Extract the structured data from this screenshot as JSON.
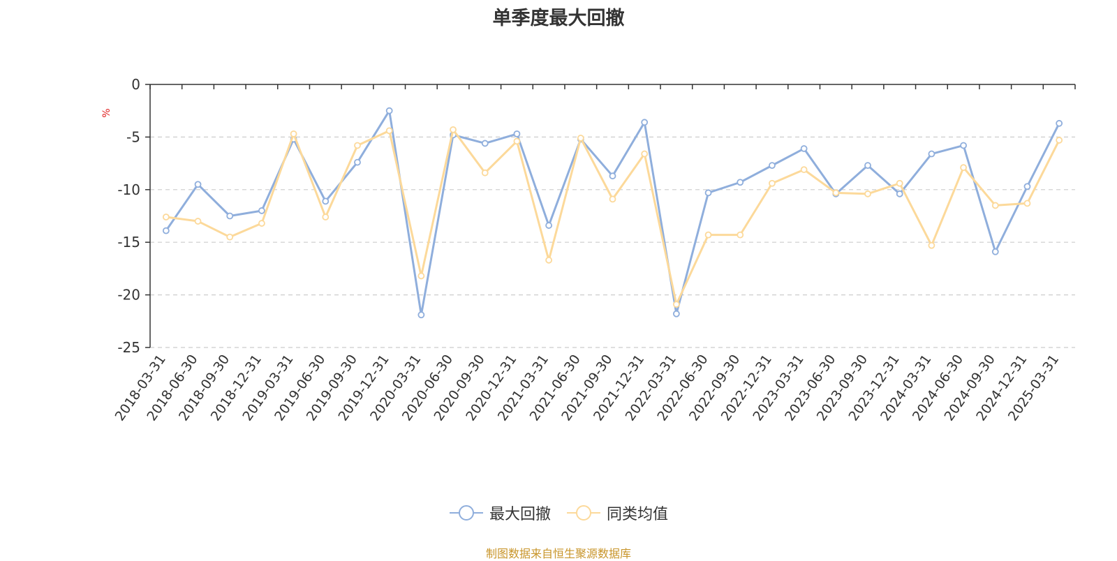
{
  "chart_data": {
    "type": "line",
    "title": "单季度最大回撤",
    "ylabel": "%",
    "xlabel": "",
    "ylim": [
      -25,
      0
    ],
    "yticks": [
      0,
      -5,
      -10,
      -15,
      -20,
      -25
    ],
    "grid": true,
    "legend_position": "bottom-center",
    "categories": [
      "2018-03-31",
      "2018-06-30",
      "2018-09-30",
      "2018-12-31",
      "2019-03-31",
      "2019-06-30",
      "2019-09-30",
      "2019-12-31",
      "2020-03-31",
      "2020-06-30",
      "2020-09-30",
      "2020-12-31",
      "2021-03-31",
      "2021-06-30",
      "2021-09-30",
      "2021-12-31",
      "2022-03-31",
      "2022-06-30",
      "2022-09-30",
      "2022-12-31",
      "2023-03-31",
      "2023-06-30",
      "2023-09-30",
      "2023-12-31",
      "2024-03-31",
      "2024-06-30",
      "2024-09-30",
      "2024-12-31",
      "2025-03-31"
    ],
    "series": [
      {
        "name": "最大回撤",
        "color": "#8faedc",
        "values": [
          -13.9,
          -9.5,
          -12.5,
          -12.0,
          -5.2,
          -11.1,
          -7.4,
          -2.5,
          -21.9,
          -4.8,
          -5.6,
          -4.7,
          -13.4,
          -5.2,
          -8.7,
          -3.6,
          -21.8,
          -10.3,
          -9.3,
          -7.7,
          -6.1,
          -10.4,
          -7.7,
          -10.4,
          -6.6,
          -5.8,
          -15.9,
          -9.7,
          -3.7
        ]
      },
      {
        "name": "同类均值",
        "color": "#fcd99a",
        "values": [
          -12.6,
          -13.0,
          -14.5,
          -13.2,
          -4.7,
          -12.6,
          -5.8,
          -4.4,
          -18.2,
          -4.3,
          -8.4,
          -5.4,
          -16.7,
          -5.1,
          -10.9,
          -6.6,
          -20.9,
          -14.3,
          -14.3,
          -9.4,
          -8.1,
          -10.3,
          -10.4,
          -9.4,
          -15.3,
          -7.9,
          -11.5,
          -11.3,
          -5.3
        ]
      }
    ],
    "source": "制图数据来自恒生聚源数据库"
  }
}
